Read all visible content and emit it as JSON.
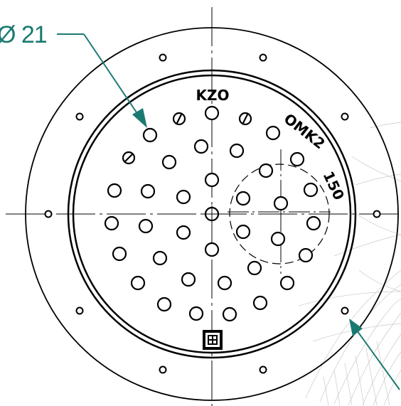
{
  "labels": {
    "dimension": "Ø 21",
    "mark_top": "KZO",
    "mark_right": "OMK2",
    "mark_right_num": "150"
  },
  "colors": {
    "line": "#000000",
    "leader": "#1a7a72",
    "background": "#ffffff",
    "mesh": "#bdbdbd"
  },
  "icons": {
    "center_square": "square-grid-marker-icon"
  }
}
